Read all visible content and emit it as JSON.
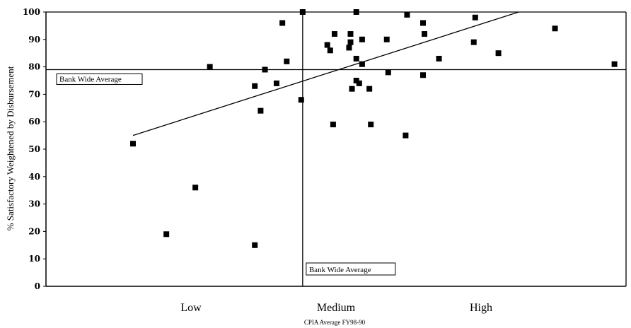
{
  "chart_data": {
    "type": "scatter",
    "title": "",
    "xlabel": "CPIA Average FY98-90",
    "ylabel": "% Satisfactory Weightened by Disbursement",
    "ylim": [
      0,
      100
    ],
    "xlim": [
      1.5,
      5.5
    ],
    "y_ticks": [
      "0",
      "10",
      "20",
      "30",
      "40",
      "50",
      "60",
      "70",
      "80",
      "90",
      "100"
    ],
    "y_tick_values": [
      0,
      10,
      20,
      30,
      40,
      50,
      60,
      70,
      80,
      90,
      100
    ],
    "x_tick_labels": [
      {
        "label": "Low",
        "x": 2.5
      },
      {
        "label": "Medium",
        "x": 3.5
      },
      {
        "label": "High",
        "x": 4.5
      }
    ],
    "grid": false,
    "legend": "none",
    "points": [
      {
        "x": 2.1,
        "y": 52
      },
      {
        "x": 2.33,
        "y": 19
      },
      {
        "x": 2.53,
        "y": 36
      },
      {
        "x": 2.63,
        "y": 80
      },
      {
        "x": 2.94,
        "y": 73
      },
      {
        "x": 2.94,
        "y": 15
      },
      {
        "x": 2.98,
        "y": 64
      },
      {
        "x": 3.01,
        "y": 79
      },
      {
        "x": 3.09,
        "y": 74
      },
      {
        "x": 3.13,
        "y": 96
      },
      {
        "x": 3.16,
        "y": 82
      },
      {
        "x": 3.26,
        "y": 68
      },
      {
        "x": 3.27,
        "y": 100
      },
      {
        "x": 3.44,
        "y": 88
      },
      {
        "x": 3.46,
        "y": 86
      },
      {
        "x": 3.49,
        "y": 92
      },
      {
        "x": 3.48,
        "y": 59
      },
      {
        "x": 3.6,
        "y": 92
      },
      {
        "x": 3.6,
        "y": 89
      },
      {
        "x": 3.59,
        "y": 87
      },
      {
        "x": 3.61,
        "y": 72
      },
      {
        "x": 3.64,
        "y": 100
      },
      {
        "x": 3.64,
        "y": 83
      },
      {
        "x": 3.64,
        "y": 75
      },
      {
        "x": 3.66,
        "y": 74
      },
      {
        "x": 3.68,
        "y": 90
      },
      {
        "x": 3.68,
        "y": 81
      },
      {
        "x": 3.73,
        "y": 72
      },
      {
        "x": 3.74,
        "y": 59
      },
      {
        "x": 3.85,
        "y": 90
      },
      {
        "x": 3.86,
        "y": 78
      },
      {
        "x": 3.98,
        "y": 55
      },
      {
        "x": 3.99,
        "y": 99
      },
      {
        "x": 4.1,
        "y": 96
      },
      {
        "x": 4.1,
        "y": 77
      },
      {
        "x": 4.11,
        "y": 92
      },
      {
        "x": 4.21,
        "y": 83
      },
      {
        "x": 4.45,
        "y": 89
      },
      {
        "x": 4.46,
        "y": 98
      },
      {
        "x": 4.62,
        "y": 85
      },
      {
        "x": 5.01,
        "y": 94
      },
      {
        "x": 5.42,
        "y": 81
      }
    ],
    "trend_line": {
      "from": [
        2.1,
        55
      ],
      "to": [
        4.76,
        100
      ]
    },
    "reference_lines": [
      {
        "orientation": "horizontal",
        "value": 79,
        "label": "Bank Wide Average"
      },
      {
        "orientation": "vertical",
        "value": 3.27,
        "label": "Bank Wide Average"
      }
    ],
    "colors": {
      "marker": "#000000",
      "line": "#000000",
      "background": "#ffffff"
    }
  }
}
